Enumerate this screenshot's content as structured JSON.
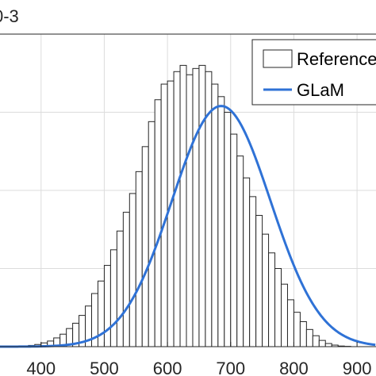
{
  "chart_data": {
    "type": "bar",
    "axis_exponent_label": "0-3",
    "xlim": [
      335,
      930
    ],
    "ylim": [
      0,
      1
    ],
    "x_ticks": [
      "400",
      "500",
      "600",
      "700",
      "800",
      "900"
    ],
    "grid": true,
    "legend_placement": "top-right",
    "series": [
      {
        "name": "Reference",
        "kind": "histogram",
        "bin_width": 10,
        "bin_start": 340,
        "values": [
          0.0,
          0.0,
          0.0,
          0.002,
          0.004,
          0.007,
          0.012,
          0.018,
          0.028,
          0.04,
          0.058,
          0.075,
          0.1,
          0.13,
          0.17,
          0.21,
          0.26,
          0.31,
          0.37,
          0.43,
          0.49,
          0.56,
          0.64,
          0.72,
          0.79,
          0.84,
          0.85,
          0.88,
          0.9,
          0.87,
          0.89,
          0.9,
          0.88,
          0.84,
          0.8,
          0.75,
          0.68,
          0.61,
          0.54,
          0.48,
          0.42,
          0.36,
          0.3,
          0.25,
          0.2,
          0.15,
          0.11,
          0.08,
          0.055,
          0.035,
          0.02,
          0.01,
          0.005,
          0.002,
          0.001,
          0.0,
          0.0,
          0.0,
          0.0
        ]
      },
      {
        "name": "GLaM",
        "kind": "line",
        "distribution": "normal",
        "mean": 685,
        "sd": 78,
        "peak": 0.77,
        "color": "#2f72d6"
      }
    ]
  }
}
